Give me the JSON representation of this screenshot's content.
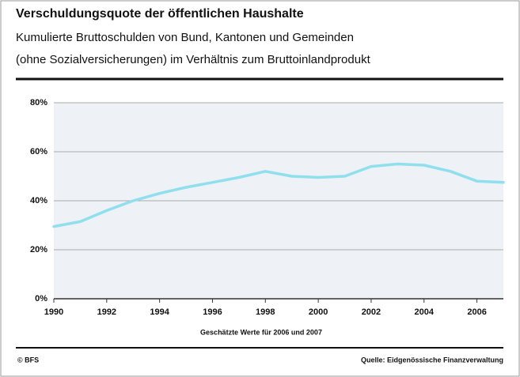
{
  "chart_data": {
    "type": "line",
    "title": "Verschuldungsquote der öffentlichen Haushalte",
    "subtitle": [
      "Kumulierte Bruttoschulden von Bund, Kantonen und Gemeinden",
      "(ohne Sozialversicherungen) im Verhältnis zum Bruttoinlandprodukt"
    ],
    "annotation": "Geschätzte Werte für 2006 und 2007",
    "footer_left": "© BFS",
    "footer_right": "Quelle: Eidgenössische Finanzverwaltung",
    "x": [
      1990,
      1991,
      1992,
      1993,
      1994,
      1995,
      1996,
      1997,
      1998,
      1999,
      2000,
      2001,
      2002,
      2003,
      2004,
      2005,
      2006,
      2007
    ],
    "values": [
      29.5,
      31.5,
      36,
      40,
      43,
      45.5,
      47.5,
      49.5,
      52,
      50,
      49.5,
      50,
      54,
      55,
      54.5,
      52,
      48,
      47.5
    ],
    "color": "#8fdfee",
    "xlim": [
      1990,
      2007
    ],
    "xticks": [
      1990,
      1992,
      1994,
      1996,
      1998,
      2000,
      2002,
      2004,
      2006
    ],
    "ylim": [
      0,
      80
    ],
    "yticks": [
      {
        "value": 0,
        "label": "0%"
      },
      {
        "value": 20,
        "label": "20%"
      },
      {
        "value": 40,
        "label": "40%"
      },
      {
        "value": 60,
        "label": "60%"
      },
      {
        "value": 80,
        "label": "80%"
      }
    ],
    "grid": true
  }
}
